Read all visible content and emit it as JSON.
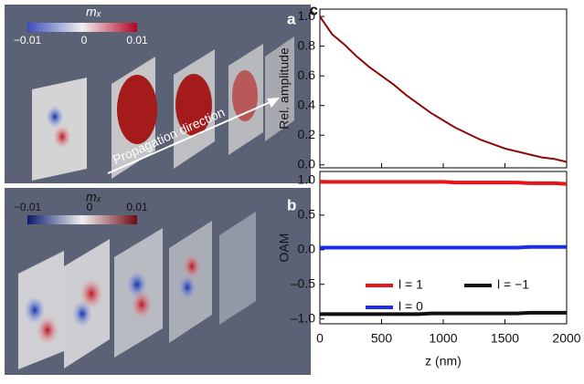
{
  "panels": [
    {
      "letter": "a",
      "colorbar": {
        "label": "mₓ",
        "ticks": [
          "−0.01",
          "0",
          "0.01"
        ]
      },
      "annotation": "Propagation direction"
    },
    {
      "letter": "b",
      "colorbar": {
        "label": "mₓ",
        "ticks": [
          "−0.01",
          "0",
          "0.01"
        ]
      }
    }
  ],
  "panel_c_letter": "c",
  "chart_data": [
    {
      "type": "line",
      "ylabel": "Rel. amplitude",
      "x": [
        0,
        100,
        200,
        300,
        400,
        500,
        600,
        700,
        800,
        900,
        1000,
        1100,
        1200,
        1300,
        1400,
        1500,
        1600,
        1700,
        1800,
        1900,
        2000
      ],
      "series": [
        {
          "color": "#8b0a0a",
          "values": [
            1.0,
            0.88,
            0.81,
            0.73,
            0.66,
            0.6,
            0.54,
            0.47,
            0.41,
            0.35,
            0.3,
            0.25,
            0.21,
            0.17,
            0.14,
            0.11,
            0.09,
            0.07,
            0.05,
            0.04,
            0.02
          ]
        }
      ],
      "xlim": [
        0,
        2000
      ],
      "xticks": [
        0,
        500,
        1000,
        1500,
        2000
      ],
      "ylim": [
        -0.02,
        1.05
      ],
      "yticks": [
        {
          "value": 0,
          "label": "0.0"
        },
        0.2,
        0.4,
        0.6,
        0.8,
        {
          "value": 1,
          "label": "1.0"
        }
      ]
    },
    {
      "type": "line",
      "ylabel": "OAM",
      "xlabel": "z (nm)",
      "x": [
        0,
        100,
        200,
        300,
        400,
        500,
        600,
        700,
        800,
        900,
        1000,
        1100,
        1200,
        1300,
        1400,
        1500,
        1600,
        1700,
        1800,
        1900,
        2000
      ],
      "series": [
        {
          "name": "l = 1",
          "color": "#e8141a",
          "values": [
            0.98,
            0.98,
            0.98,
            0.98,
            0.98,
            0.98,
            0.98,
            0.98,
            0.98,
            0.98,
            0.98,
            0.97,
            0.97,
            0.97,
            0.97,
            0.97,
            0.97,
            0.96,
            0.96,
            0.96,
            0.95
          ]
        },
        {
          "name": "l = −1",
          "color": "#111111",
          "values": [
            -0.93,
            -0.93,
            -0.93,
            -0.93,
            -0.93,
            -0.93,
            -0.93,
            -0.93,
            -0.93,
            -0.92,
            -0.92,
            -0.92,
            -0.92,
            -0.92,
            -0.92,
            -0.92,
            -0.92,
            -0.91,
            -0.91,
            -0.91,
            -0.91
          ]
        },
        {
          "name": "l = 0",
          "color": "#1a2cf0",
          "values": [
            0.03,
            0.03,
            0.03,
            0.03,
            0.03,
            0.03,
            0.03,
            0.03,
            0.03,
            0.03,
            0.03,
            0.03,
            0.03,
            0.03,
            0.03,
            0.03,
            0.03,
            0.04,
            0.04,
            0.04,
            0.04
          ]
        }
      ],
      "xlim": [
        0,
        2000
      ],
      "xticks": [
        0,
        500,
        1000,
        1500,
        2000
      ],
      "ylim": [
        -1.07,
        1.13
      ],
      "yticks": [
        {
          "value": -1,
          "label": "–1.0"
        },
        {
          "value": -0.5,
          "label": "–0.5"
        },
        {
          "value": 0,
          "label": "0.0"
        },
        0.5,
        {
          "value": 1,
          "label": "1.0"
        }
      ],
      "legend": "lower right"
    }
  ]
}
